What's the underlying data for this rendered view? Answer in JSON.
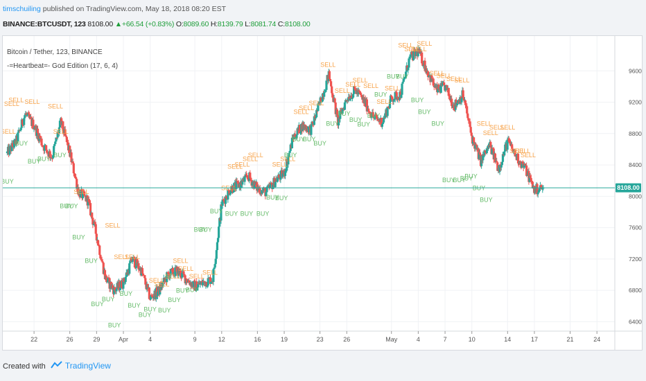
{
  "header": {
    "publisher": "timschuiling",
    "published_text": "published on TradingView.com, May 18, 2018 08:20 EST"
  },
  "ohlc_bar": {
    "symbol": "BINANCE:BTCUSDT, 123",
    "last": "8108.00",
    "change": "+66.54 (+0.83%)",
    "o_label": "O:",
    "o_value": "8089.60",
    "h_label": "H:",
    "h_value": "8139.79",
    "l_label": "L:",
    "l_value": "8081.74",
    "c_label": "C:",
    "c_value": "8108.00"
  },
  "legend": {
    "series_title": "Bitcoin / Tether, 123, BINANCE",
    "indicator_title": "-=Heartbeat=- God Edition (17, 6, 4)"
  },
  "footer": {
    "created_with": "Created with",
    "brand": "TradingView"
  },
  "colors": {
    "up": "#26a69a",
    "down": "#ef5350",
    "sell_label": "#f7a34a",
    "buy_label": "#66bb6a",
    "price_line": "#26a69a"
  },
  "chart_data": {
    "type": "candlestick",
    "title": "Bitcoin / Tether, 123, BINANCE",
    "xlabel": "",
    "ylabel": "",
    "ylim": [
      6280,
      10000
    ],
    "y_ticks": [
      "9600.00",
      "9200.00",
      "8800.00",
      "8400.00",
      "8000.00",
      "7600.00",
      "7200.00",
      "6800.00",
      "6400.00"
    ],
    "y_tick_values": [
      9600,
      9200,
      8800,
      8400,
      8000,
      7600,
      7200,
      6800,
      6400
    ],
    "x_ticks": [
      "22",
      "26",
      "29",
      "Apr",
      "4",
      "9",
      "12",
      "16",
      "19",
      "23",
      "26",
      "May",
      "4",
      "7",
      "10",
      "14",
      "17",
      "21",
      "24"
    ],
    "x_tick_days": [
      22,
      26,
      29,
      32,
      35,
      40,
      43,
      47,
      50,
      54,
      57,
      62,
      65,
      68,
      71,
      75,
      78,
      82,
      85
    ],
    "x_range_days": [
      18.5,
      87
    ],
    "current_price": 8108.0,
    "current_price_label": "8108.00",
    "close_path": [
      [
        19,
        8550
      ],
      [
        20,
        8700
      ],
      [
        21,
        9050
      ],
      [
        22,
        8900
      ],
      [
        23,
        8650
      ],
      [
        24,
        8500
      ],
      [
        25,
        8950
      ],
      [
        26,
        8550
      ],
      [
        27,
        8050
      ],
      [
        28,
        7950
      ],
      [
        29,
        7500
      ],
      [
        30,
        6950
      ],
      [
        31,
        6800
      ],
      [
        32,
        6900
      ],
      [
        33,
        7200
      ],
      [
        34,
        7050
      ],
      [
        35,
        6700
      ],
      [
        36,
        6800
      ],
      [
        37,
        7000
      ],
      [
        38,
        7050
      ],
      [
        39,
        6950
      ],
      [
        40,
        6850
      ],
      [
        41,
        6900
      ],
      [
        42,
        6950
      ],
      [
        43,
        7900
      ],
      [
        44,
        8100
      ],
      [
        45,
        8150
      ],
      [
        46,
        8250
      ],
      [
        47,
        8100
      ],
      [
        48,
        8050
      ],
      [
        49,
        8200
      ],
      [
        50,
        8300
      ],
      [
        51,
        8750
      ],
      [
        52,
        8900
      ],
      [
        53,
        8850
      ],
      [
        54,
        9200
      ],
      [
        55,
        9550
      ],
      [
        56,
        8950
      ],
      [
        57,
        9250
      ],
      [
        58,
        9350
      ],
      [
        59,
        9200
      ],
      [
        60,
        9000
      ],
      [
        61,
        8950
      ],
      [
        62,
        9250
      ],
      [
        63,
        9300
      ],
      [
        64,
        9750
      ],
      [
        65,
        9850
      ],
      [
        66,
        9600
      ],
      [
        67,
        9350
      ],
      [
        68,
        9400
      ],
      [
        69,
        9150
      ],
      [
        70,
        9300
      ],
      [
        71,
        8750
      ],
      [
        72,
        8450
      ],
      [
        73,
        8650
      ],
      [
        74,
        8350
      ],
      [
        75,
        8700
      ],
      [
        76,
        8500
      ],
      [
        77,
        8350
      ],
      [
        78,
        8080
      ],
      [
        79,
        8108
      ]
    ],
    "signals": {
      "SELL": [
        [
          19.1,
          8800
        ],
        [
          19.5,
          9150
        ],
        [
          20.0,
          9200
        ],
        [
          21.8,
          9180
        ],
        [
          24.4,
          9120
        ],
        [
          25.0,
          8800
        ],
        [
          27.3,
          8030
        ],
        [
          30.8,
          7600
        ],
        [
          31.8,
          7200
        ],
        [
          33.0,
          7200
        ],
        [
          35.7,
          6900
        ],
        [
          36.3,
          6850
        ],
        [
          37.5,
          6950
        ],
        [
          38.4,
          7150
        ],
        [
          39.0,
          7050
        ],
        [
          40.2,
          6950
        ],
        [
          41.7,
          7000
        ],
        [
          43.8,
          8080
        ],
        [
          44.5,
          8350
        ],
        [
          45.3,
          8380
        ],
        [
          46.2,
          8450
        ],
        [
          46.8,
          8500
        ],
        [
          49.5,
          8380
        ],
        [
          50.4,
          8450
        ],
        [
          51.9,
          9050
        ],
        [
          52.5,
          9100
        ],
        [
          53.6,
          9160
        ],
        [
          54.9,
          9650
        ],
        [
          56.5,
          9320
        ],
        [
          57.7,
          9400
        ],
        [
          58.5,
          9450
        ],
        [
          59.7,
          9380
        ],
        [
          61.2,
          9180
        ],
        [
          62.1,
          9350
        ],
        [
          63.6,
          9900
        ],
        [
          64.3,
          9850
        ],
        [
          65.1,
          9850
        ],
        [
          65.7,
          9920
        ],
        [
          67.1,
          9540
        ],
        [
          67.9,
          9510
        ],
        [
          69.0,
          9470
        ],
        [
          69.9,
          9450
        ],
        [
          72.4,
          8900
        ],
        [
          73.1,
          8780
        ],
        [
          73.8,
          8850
        ],
        [
          75.0,
          8850
        ],
        [
          76.1,
          8550
        ],
        [
          76.7,
          8550
        ],
        [
          77.3,
          8500
        ]
      ],
      "BUY": [
        [
          19.0,
          8160
        ],
        [
          20.6,
          8650
        ],
        [
          22.0,
          8420
        ],
        [
          23.1,
          8450
        ],
        [
          24.9,
          8500
        ],
        [
          25.6,
          7850
        ],
        [
          26.2,
          7850
        ],
        [
          27.0,
          7450
        ],
        [
          28.4,
          7150
        ],
        [
          29.1,
          6600
        ],
        [
          30.3,
          6660
        ],
        [
          31.0,
          6330
        ],
        [
          32.3,
          6730
        ],
        [
          33.2,
          6580
        ],
        [
          34.4,
          6460
        ],
        [
          35.0,
          6530
        ],
        [
          36.6,
          6520
        ],
        [
          37.7,
          6650
        ],
        [
          38.6,
          6770
        ],
        [
          39.7,
          6780
        ],
        [
          40.6,
          7550
        ],
        [
          41.2,
          7550
        ],
        [
          42.4,
          7780
        ],
        [
          44.1,
          7750
        ],
        [
          45.8,
          7750
        ],
        [
          47.6,
          7750
        ],
        [
          48.7,
          7960
        ],
        [
          49.7,
          7950
        ],
        [
          50.7,
          8500
        ],
        [
          51.6,
          8700
        ],
        [
          52.8,
          8700
        ],
        [
          54.0,
          8650
        ],
        [
          55.4,
          8900
        ],
        [
          56.7,
          9030
        ],
        [
          58.0,
          8950
        ],
        [
          58.9,
          8890
        ],
        [
          60.0,
          9000
        ],
        [
          60.8,
          9270
        ],
        [
          62.2,
          9500
        ],
        [
          63.2,
          9500
        ],
        [
          64.9,
          9200
        ],
        [
          65.7,
          9050
        ],
        [
          67.2,
          8900
        ],
        [
          68.4,
          8180
        ],
        [
          69.6,
          8180
        ],
        [
          70.4,
          8200
        ],
        [
          70.9,
          8230
        ],
        [
          71.8,
          8080
        ],
        [
          72.6,
          7930
        ]
      ]
    }
  }
}
